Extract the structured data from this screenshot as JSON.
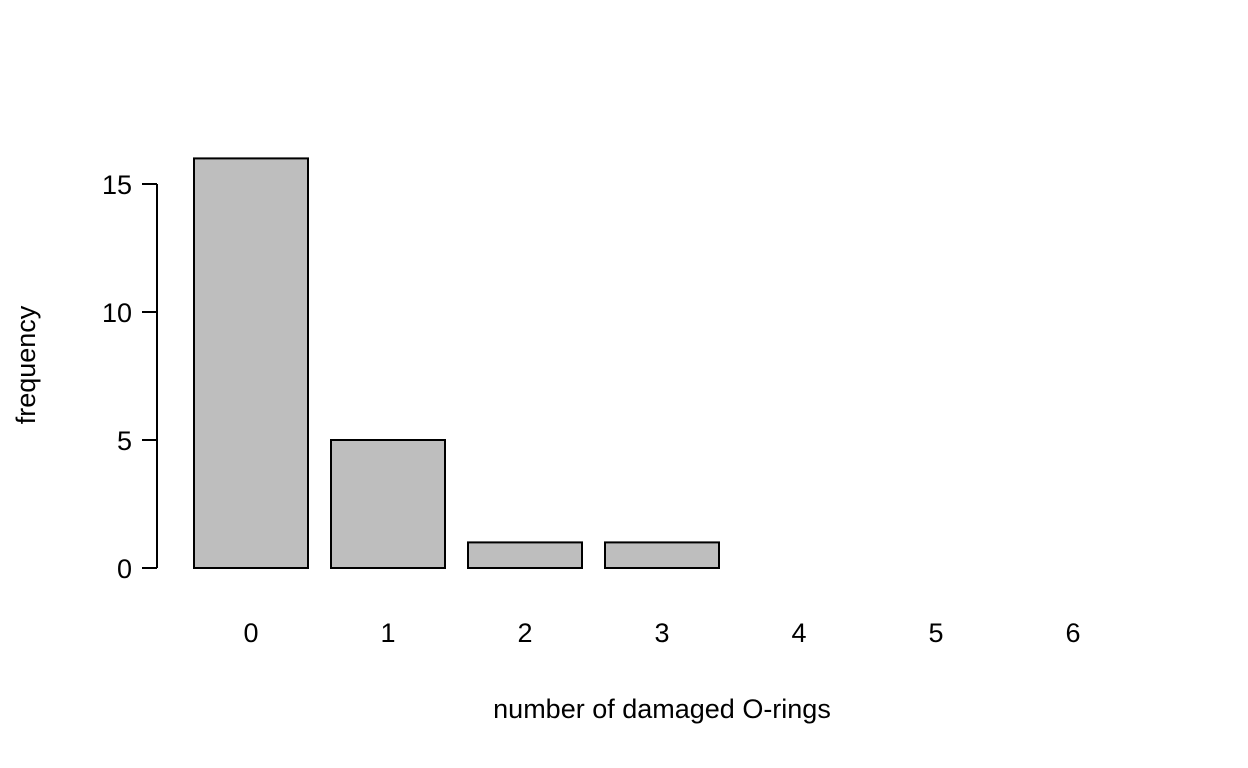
{
  "chart_data": {
    "type": "bar",
    "title": "",
    "xlabel": "number of damaged O-rings",
    "ylabel": "frequency",
    "categories": [
      "0",
      "1",
      "2",
      "3",
      "4",
      "5",
      "6"
    ],
    "values": [
      16,
      5,
      1,
      1,
      0,
      0,
      0
    ],
    "yticks": [
      0,
      5,
      10,
      15
    ],
    "ylim": [
      0,
      16
    ],
    "grid": false,
    "legend": "none",
    "colors": {
      "bar_fill": "#bebebe",
      "bar_stroke": "#000000",
      "axis": "#000000",
      "text": "#000000"
    }
  }
}
